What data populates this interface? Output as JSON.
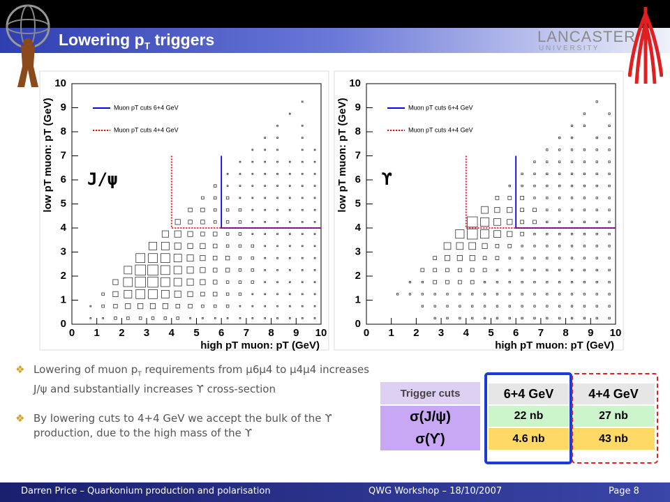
{
  "header": {
    "title": {
      "main": "Lowering p",
      "sub": "T",
      "rest": " triggers"
    },
    "logo": {
      "name": "LANCASTER",
      "subtitle": "U N I V E R S I T Y"
    }
  },
  "chart_data": [
    {
      "type": "box2d",
      "label": "J/ψ",
      "x_label": "high pT muon: pT (GeV)",
      "y_label": "low pT muon: pT (GeV)",
      "xlim": [
        0,
        10
      ],
      "ylim": [
        0,
        10
      ],
      "xticks": [
        0,
        1,
        2,
        3,
        4,
        5,
        6,
        7,
        8,
        9,
        10
      ],
      "yticks": [
        0,
        1,
        2,
        3,
        4,
        5,
        6,
        7,
        8,
        9,
        10
      ],
      "z": [
        [
          0,
          1,
          1,
          2,
          2,
          2,
          2,
          2,
          2,
          1,
          1,
          1,
          1,
          1,
          1,
          1,
          1,
          1,
          1,
          1
        ],
        [
          0,
          1,
          2,
          3,
          4,
          4,
          4,
          4,
          3,
          3,
          2,
          2,
          2,
          1,
          1,
          1,
          1,
          1,
          1,
          1
        ],
        [
          0,
          0,
          2,
          4,
          6,
          7,
          7,
          6,
          5,
          4,
          3,
          3,
          2,
          2,
          1,
          1,
          1,
          1,
          1,
          1
        ],
        [
          0,
          0,
          0,
          4,
          7,
          8,
          8,
          7,
          6,
          5,
          4,
          3,
          2,
          2,
          2,
          1,
          1,
          1,
          1,
          1
        ],
        [
          0,
          0,
          0,
          0,
          6,
          8,
          8,
          7,
          6,
          5,
          4,
          3,
          3,
          2,
          2,
          1,
          1,
          1,
          1,
          1
        ],
        [
          0,
          0,
          0,
          0,
          0,
          7,
          7,
          7,
          6,
          5,
          4,
          3,
          3,
          2,
          2,
          1,
          1,
          1,
          1,
          1
        ],
        [
          0,
          0,
          0,
          0,
          0,
          0,
          6,
          6,
          5,
          4,
          4,
          3,
          2,
          2,
          2,
          1,
          1,
          1,
          1,
          1
        ],
        [
          0,
          0,
          0,
          0,
          0,
          0,
          0,
          5,
          5,
          4,
          3,
          3,
          2,
          2,
          1,
          1,
          1,
          1,
          1,
          1
        ],
        [
          0,
          0,
          0,
          0,
          0,
          0,
          0,
          0,
          4,
          3,
          3,
          2,
          2,
          2,
          1,
          1,
          1,
          1,
          1,
          1
        ],
        [
          0,
          0,
          0,
          0,
          0,
          0,
          0,
          0,
          0,
          3,
          3,
          2,
          2,
          2,
          1,
          1,
          1,
          1,
          1,
          1
        ],
        [
          0,
          0,
          0,
          0,
          0,
          0,
          0,
          0,
          0,
          0,
          2,
          2,
          2,
          1,
          1,
          1,
          1,
          1,
          1,
          1
        ],
        [
          0,
          0,
          0,
          0,
          0,
          0,
          0,
          0,
          0,
          0,
          0,
          2,
          1,
          1,
          1,
          1,
          1,
          1,
          1,
          1
        ],
        [
          0,
          0,
          0,
          0,
          0,
          0,
          0,
          0,
          0,
          0,
          0,
          0,
          1,
          1,
          1,
          1,
          1,
          1,
          1,
          1
        ],
        [
          0,
          0,
          0,
          0,
          0,
          0,
          0,
          0,
          0,
          0,
          0,
          0,
          0,
          1,
          1,
          1,
          1,
          1,
          1,
          1
        ],
        [
          0,
          0,
          0,
          0,
          0,
          0,
          0,
          0,
          0,
          0,
          0,
          0,
          0,
          0,
          1,
          1,
          1,
          0,
          1,
          1
        ],
        [
          0,
          0,
          0,
          0,
          0,
          0,
          0,
          0,
          0,
          0,
          0,
          0,
          0,
          0,
          0,
          1,
          1,
          0,
          1,
          0
        ],
        [
          0,
          0,
          0,
          0,
          0,
          0,
          0,
          0,
          0,
          0,
          0,
          0,
          0,
          0,
          0,
          0,
          1,
          0,
          1,
          0
        ],
        [
          0,
          0,
          0,
          0,
          0,
          0,
          0,
          0,
          0,
          0,
          0,
          0,
          0,
          0,
          0,
          0,
          0,
          1,
          0,
          0
        ],
        [
          0,
          0,
          0,
          0,
          0,
          0,
          0,
          0,
          0,
          0,
          0,
          0,
          0,
          0,
          0,
          0,
          0,
          0,
          1,
          0
        ],
        [
          0,
          0,
          0,
          0,
          0,
          0,
          0,
          0,
          0,
          0,
          0,
          0,
          0,
          0,
          0,
          0,
          0,
          0,
          0,
          0
        ]
      ],
      "cuts": [
        {
          "name": "Muon pT cuts 6+4 GeV",
          "color": "#0000ff",
          "style": "solid",
          "x": [
            6,
            6,
            10
          ],
          "y": [
            7,
            4,
            4
          ]
        },
        {
          "name": "Muon pT cuts 4+4 GeV",
          "color": "#ff0000",
          "style": "dotted",
          "x": [
            4,
            4,
            10
          ],
          "y": [
            7,
            4,
            4
          ]
        }
      ]
    },
    {
      "type": "box2d",
      "label": "ϒ",
      "x_label": "high pT muon: pT (GeV)",
      "y_label": "low pT muon: pT (GeV)",
      "xlim": [
        0,
        10
      ],
      "ylim": [
        0,
        10
      ],
      "xticks": [
        0,
        1,
        2,
        3,
        4,
        5,
        6,
        7,
        8,
        9,
        10
      ],
      "yticks": [
        0,
        1,
        2,
        3,
        4,
        5,
        6,
        7,
        8,
        9,
        10
      ],
      "z": [
        [
          0,
          0,
          0,
          0,
          0,
          1,
          1,
          1,
          1,
          1,
          1,
          1,
          1,
          1,
          1,
          1,
          1,
          1,
          1,
          1
        ],
        [
          0,
          0,
          0,
          0,
          1,
          1,
          1,
          1,
          1,
          1,
          1,
          1,
          1,
          1,
          1,
          1,
          1,
          1,
          1,
          1
        ],
        [
          0,
          0,
          1,
          1,
          1,
          1,
          1,
          1,
          1,
          1,
          1,
          1,
          1,
          1,
          1,
          1,
          1,
          1,
          1,
          1
        ],
        [
          0,
          0,
          0,
          1,
          1,
          2,
          2,
          2,
          2,
          1,
          1,
          1,
          1,
          1,
          1,
          1,
          1,
          1,
          1,
          1
        ],
        [
          0,
          0,
          0,
          0,
          2,
          2,
          2,
          2,
          2,
          2,
          1,
          1,
          1,
          1,
          1,
          1,
          1,
          1,
          1,
          1
        ],
        [
          0,
          0,
          0,
          0,
          0,
          2,
          3,
          3,
          3,
          2,
          2,
          1,
          1,
          1,
          1,
          1,
          1,
          1,
          1,
          1
        ],
        [
          0,
          0,
          0,
          0,
          0,
          0,
          4,
          4,
          4,
          3,
          2,
          2,
          1,
          1,
          1,
          1,
          1,
          1,
          1,
          1
        ],
        [
          0,
          0,
          0,
          0,
          0,
          0,
          0,
          5,
          6,
          5,
          4,
          3,
          2,
          1,
          1,
          1,
          1,
          1,
          1,
          1
        ],
        [
          0,
          0,
          0,
          0,
          0,
          0,
          0,
          0,
          6,
          5,
          4,
          3,
          2,
          2,
          1,
          1,
          1,
          1,
          1,
          1
        ],
        [
          0,
          0,
          0,
          0,
          0,
          0,
          0,
          0,
          0,
          4,
          3,
          3,
          2,
          2,
          1,
          1,
          1,
          1,
          1,
          1
        ],
        [
          0,
          0,
          0,
          0,
          0,
          0,
          0,
          0,
          0,
          0,
          2,
          2,
          2,
          1,
          1,
          1,
          1,
          1,
          1,
          1
        ],
        [
          0,
          0,
          0,
          0,
          0,
          0,
          0,
          0,
          0,
          0,
          0,
          1,
          1,
          1,
          1,
          1,
          1,
          1,
          1,
          1
        ],
        [
          0,
          0,
          0,
          0,
          0,
          0,
          0,
          0,
          0,
          0,
          0,
          0,
          1,
          1,
          1,
          1,
          1,
          1,
          1,
          1
        ],
        [
          0,
          0,
          0,
          0,
          0,
          0,
          0,
          0,
          0,
          0,
          0,
          0,
          0,
          1,
          1,
          1,
          1,
          1,
          1,
          1
        ],
        [
          0,
          0,
          0,
          0,
          0,
          0,
          0,
          0,
          0,
          0,
          0,
          0,
          0,
          0,
          1,
          1,
          1,
          1,
          1,
          1
        ],
        [
          0,
          0,
          0,
          0,
          0,
          0,
          0,
          0,
          0,
          0,
          0,
          0,
          0,
          0,
          0,
          1,
          1,
          0,
          1,
          1
        ],
        [
          0,
          0,
          0,
          0,
          0,
          0,
          0,
          0,
          0,
          0,
          0,
          0,
          0,
          0,
          0,
          0,
          1,
          1,
          0,
          1
        ],
        [
          0,
          0,
          0,
          0,
          0,
          0,
          0,
          0,
          0,
          0,
          0,
          0,
          0,
          0,
          0,
          0,
          0,
          1,
          0,
          1
        ],
        [
          0,
          0,
          0,
          0,
          0,
          0,
          0,
          0,
          0,
          0,
          0,
          0,
          0,
          0,
          0,
          0,
          0,
          0,
          1,
          0
        ],
        [
          0,
          0,
          0,
          0,
          0,
          0,
          0,
          0,
          0,
          0,
          0,
          0,
          0,
          0,
          0,
          0,
          0,
          0,
          0,
          0
        ]
      ],
      "cuts": [
        {
          "name": "Muon pT cuts 6+4 GeV",
          "color": "#0000ff",
          "style": "solid",
          "x": [
            6,
            6,
            10
          ],
          "y": [
            7,
            4,
            4
          ]
        },
        {
          "name": "Muon pT cuts 4+4 GeV",
          "color": "#ff0000",
          "style": "dotted",
          "x": [
            4,
            4,
            10
          ],
          "y": [
            7,
            4,
            4
          ]
        }
      ]
    }
  ],
  "bullets": [
    {
      "a": "Lowering of muon p",
      "sub": "T",
      "b": " requirements from μ6μ4 to μ4μ4 increases J/ψ and substantially increases ϒ cross-section"
    },
    "By lowering cuts to 4+4 GeV we accept the bulk of the ϒ production, due to the high mass of the ϒ"
  ],
  "table": {
    "header": [
      "Trigger cuts",
      "6+4 GeV",
      "4+4 GeV"
    ],
    "rows": [
      [
        "σ(J/ψ)",
        "22 nb",
        "27 nb"
      ],
      [
        "σ(ϒ)",
        "4.6 nb",
        "43 nb"
      ]
    ]
  },
  "footer": {
    "author": "Darren Price – Quarkonium production and polarisation",
    "event": "QWG Workshop – 18/10/2007",
    "page": "Page 8"
  }
}
